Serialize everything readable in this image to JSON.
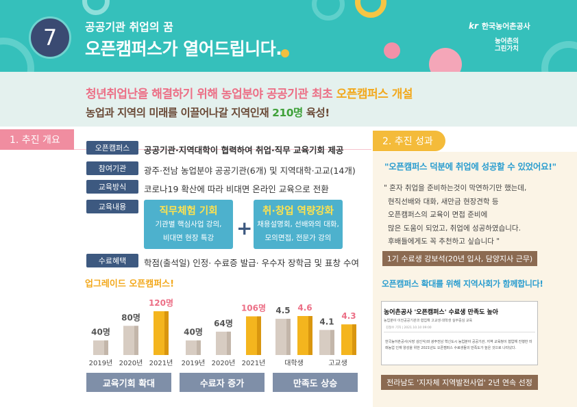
{
  "header": {
    "number": "7",
    "subtitle": "공공기관 취업의 꿈",
    "title": "오픈캠퍼스가 열어드립니다.",
    "logo_text": "한국농어촌공사",
    "logo_mark": "kr",
    "logo2_line1": "농어촌의",
    "logo2_line2": "그린가치",
    "colors": {
      "bg": "#35c0bb",
      "badge": "#3a4a72"
    }
  },
  "banner": {
    "line1_part1": "청년취업난을 해결하기 위해 농업분야 공공기관 최초 ",
    "line1_highlight": "오픈캠퍼스 개설",
    "line2_part1": "농업과 지역의 미래를 이끌어나갈 지역인재 ",
    "line2_highlight": "210명",
    "line2_part2": " 육성!"
  },
  "overview": {
    "tab": "1. 추진 개요",
    "rows": [
      {
        "label": "오픈캠퍼스",
        "text": "공공기관·지역대학이 협력하여 취업·직무 교육기회 제공"
      },
      {
        "label": "참여기관",
        "text": "광주·전남 농업분야 공공기관(6개) 및 지역대학·고교(14개)"
      },
      {
        "label": "교육방식",
        "text": "코로나19 확산에 따라 비대면 온라인 교육으로 전환"
      },
      {
        "label": "교육내용",
        "text": ""
      },
      {
        "label": "수료혜택",
        "text": "학점(출석일) 인정· 수료증 발급· 우수자 장학금 및 표창 수여"
      }
    ],
    "content_box1": {
      "title": "직무체험 기회",
      "line1": "기관별 핵심사업 강의,",
      "line2": "비대면 현장 특강"
    },
    "content_box2": {
      "title": "취·창업 역량강화",
      "line1": "채용설명회, 선배와의 대화,",
      "line2": "모의면접, 전문가 강의"
    },
    "plus": "+"
  },
  "upgrade_title": "업그레이드 오픈캠퍼스!",
  "chart_data": [
    {
      "type": "bar",
      "categories": [
        "2019년",
        "2020년",
        "2021년"
      ],
      "values": [
        40,
        80,
        120
      ],
      "labels": [
        "40명",
        "80명",
        "120명"
      ],
      "caption": "교육기회 확대"
    },
    {
      "type": "bar",
      "categories": [
        "2019년",
        "2020년",
        "2021년"
      ],
      "values": [
        40,
        64,
        106
      ],
      "labels": [
        "40명",
        "64명",
        "106명"
      ],
      "caption": "수료자 증가"
    },
    {
      "type": "bar",
      "categories": [
        "대학생",
        "고교생"
      ],
      "series": [
        {
          "values": [
            4.5,
            4.1
          ]
        },
        {
          "values": [
            4.6,
            4.3
          ]
        }
      ],
      "labels": [
        [
          "4.5",
          "4.6"
        ],
        [
          "4.1",
          "4.3"
        ]
      ],
      "caption": "만족도 상승"
    }
  ],
  "results": {
    "tab": "2. 추진 성과",
    "quote_title": "\"오픈캠퍼스 덕분에 취업에 성공할 수 있었어요!\"",
    "quote_lines": [
      "\" 혼자 취업을 준비하는것이 막연하기만 했는데,",
      "현직선배와 대화, 새만금 현장견학 등",
      "오픈캠퍼스의 교육이 면접 준비에",
      "많은 도움이 되었고, 취업에 성공하였습니다.",
      "후배들에게도 꼭 추천하고 싶습니다 \""
    ],
    "quote_author": "1기 수료생 강보석(20년 입사, 담양지사 근무)",
    "expand_title": "오픈캠퍼스 확대를 위해 지역사회가 함께합니다!",
    "news_title": "농어촌공사 '오픈캠퍼스' 수료생 만족도 높아",
    "news_sub": "농업분야 이전공공기관과 협업해 고교생·대학생 실무중심 교육",
    "news_meta": "김철수 기자 | 2021.10.10 09:00",
    "news_body": "한국농어촌공사(사장 김인식)와 광주전남 혁신도시 농업분야 공공기관, 지역 교육청이 협업해 진행한 미래농업 인재 양성을 위한 2021년도 오픈캠퍼스 수료생들의 만족도가 높은 것으로 나타났다.",
    "award": "전라남도 '지자체 지역발전사업' 2년 연속 선정"
  },
  "colors": {
    "pink": "#ec6f86",
    "yellow": "#f2a81c",
    "navy": "#3d5980",
    "teal": "#35c0bb",
    "blue": "#2a9dcf",
    "bar_light": "#d7ccc2",
    "bar_gold": "#f4b51e"
  }
}
